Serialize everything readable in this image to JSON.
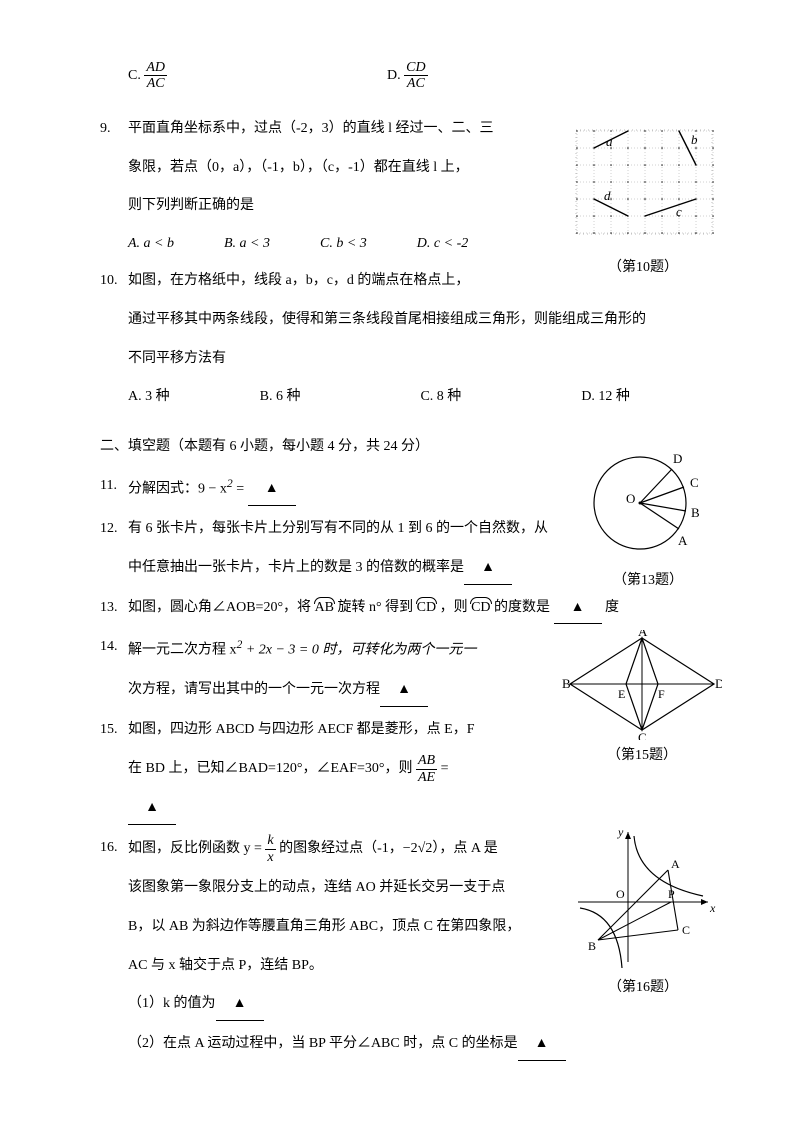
{
  "q8": {
    "optC_prefix": "C. ",
    "optC_num": "AD",
    "optC_den": "AC",
    "optD_prefix": "D. ",
    "optD_num": "CD",
    "optD_den": "AC"
  },
  "q9": {
    "num": "9.",
    "line1": "平面直角坐标系中，过点（-2，3）的直线 l 经过一、二、三",
    "line2": "象限，若点（0，a），（-1，b），（c，-1）都在直线 l 上，",
    "line3": "则下列判断正确的是",
    "optA": "A. a < b",
    "optB": "B. a < 3",
    "optC": "C. b < 3",
    "optD": "D. c < -2"
  },
  "q10": {
    "num": "10.",
    "line1": "如图，在方格纸中，线段 a，b，c，d 的端点在格点上，",
    "line2": "通过平移其中两条线段，使得和第三条线段首尾相接组成三角形，则能组成三角形的",
    "line3": "不同平移方法有",
    "optA": "A. 3 种",
    "optB": "B. 6 种",
    "optC": "C. 8 种",
    "optD": "D. 12 种",
    "caption": "（第10题）",
    "labels": {
      "a": "a",
      "b": "b",
      "c": "c",
      "d": "d"
    }
  },
  "section2": "二、填空题（本题有 6 小题，每小题 4 分，共 24 分）",
  "q11": {
    "num": "11.",
    "text_before": "分解因式：9 − x",
    "sup": "2",
    "text_after": " = ",
    "blank": "▲"
  },
  "q12": {
    "num": "12.",
    "line1": "有 6 张卡片，每张卡片上分别写有不同的从 1 到 6 的一个自然数，从",
    "line2_before": "中任意抽出一张卡片，卡片上的数是 3 的倍数的概率是",
    "blank": "▲"
  },
  "q13": {
    "num": "13.",
    "before1": "如图，圆心角∠AOB=20°，将",
    "arc1": "AB",
    "mid1": "旋转 n° 得到",
    "arc2": "CD",
    "mid2": "，则",
    "arc3": "CD",
    "after": "的度数是",
    "blank": "▲",
    "unit": "度",
    "caption": "（第13题）",
    "labels": {
      "O": "O",
      "A": "A",
      "B": "B",
      "C": "C",
      "D": "D"
    }
  },
  "q14": {
    "num": "14.",
    "line1_a": "解一元二次方程 x",
    "sup1": "2",
    "line1_b": " + 2x − 3 = 0 时，可转化为两个一元一",
    "line2_before": "次方程，请写出其中的一个一元一次方程",
    "blank": "▲"
  },
  "q15": {
    "num": "15.",
    "line1": "如图，四边形 ABCD 与四边形 AECF 都是菱形，点 E，F",
    "line2_before": "在 BD 上，已知∠BAD=120°，∠EAF=30°，则 ",
    "frac_num": "AB",
    "frac_den": "AE",
    "line2_after": " =",
    "blank": "▲",
    "caption": "（第15题）",
    "labels": {
      "A": "A",
      "B": "B",
      "C": "C",
      "D": "D",
      "E": "E",
      "F": "F"
    }
  },
  "q16": {
    "num": "16.",
    "line1_a": "如图，反比例函数 y = ",
    "frac_num": "k",
    "frac_den": "x",
    "line1_b": " 的图象经过点（-1，−2√2），点 A 是",
    "line2": "该图象第一象限分支上的动点，连结 AO 并延长交另一支于点",
    "line3": "B，以 AB 为斜边作等腰直角三角形 ABC，顶点 C 在第四象限，",
    "line4": "AC 与 x 轴交于点 P，连结 BP。",
    "part1_before": "（1）k 的值为",
    "blank1": "▲",
    "part2_before": "（2）在点 A 运动过程中，当 BP 平分∠ABC 时，点 C 的坐标是",
    "blank2": "▲",
    "caption": "（第16题）",
    "labels": {
      "x": "x",
      "y": "y",
      "O": "O",
      "A": "A",
      "B": "B",
      "C": "C",
      "P": "P"
    }
  },
  "grid": {
    "color": "#000000",
    "dot_r": 0.6
  }
}
